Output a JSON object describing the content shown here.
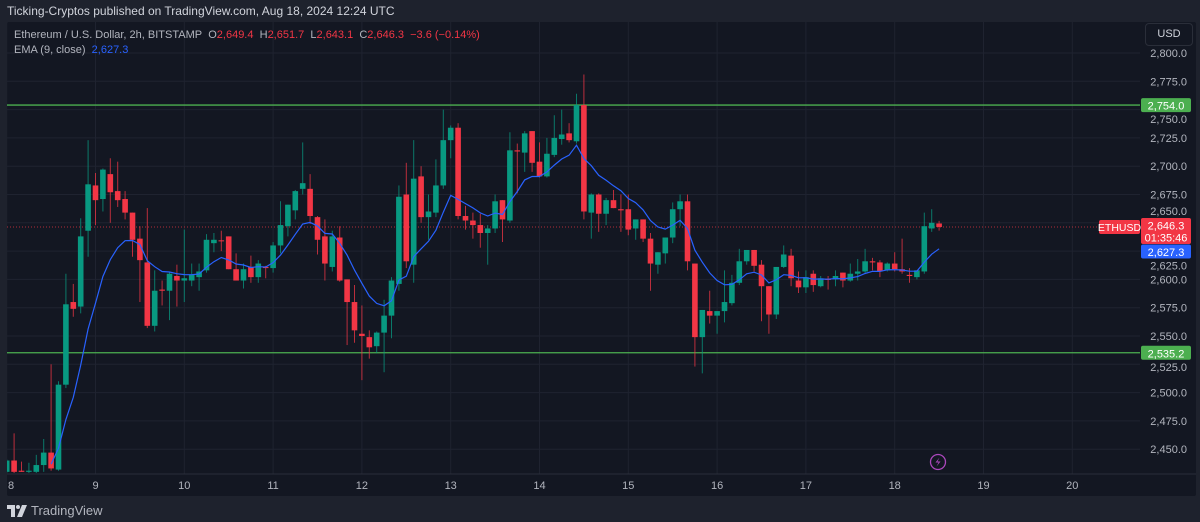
{
  "header": {
    "published": "Ticking-Cryptos published on TradingView.com, Aug 18, 2024 12:24 UTC"
  },
  "legend": {
    "symbol": "Ethereum / U.S. Dollar, 2h, BITSTAMP",
    "o_label": "O",
    "o": "2,649.4",
    "h_label": "H",
    "h": "2,651.7",
    "l_label": "L",
    "l": "2,643.1",
    "c_label": "C",
    "c": "2,646.3",
    "change": "−3.6 (−0.14%)",
    "ema_label": "EMA (9, close)",
    "ema_value": "2,627.3"
  },
  "currency_button": "USD",
  "footer": {
    "brand": "TradingView",
    "logo_icon": "tradingview-logo-icon"
  },
  "colors": {
    "up": "#089981",
    "down": "#f23645",
    "ema": "#2962ff",
    "level": "#4caf50",
    "event": "#ab47bc"
  },
  "chart_data": {
    "type": "candlestick",
    "symbol": "ETHUSD",
    "interval": "2h",
    "ylim": [
      2435,
      2812
    ],
    "y_ticks": [
      "2,800.0",
      "2,775.0",
      "2,750.0",
      "2,725.0",
      "2,700.0",
      "2,675.0",
      "2,650.0",
      "2,625.0",
      "2,600.0",
      "2,575.0",
      "2,550.0",
      "2,525.0",
      "2,500.0",
      "2,475.0",
      "2,450.0"
    ],
    "x_ticks": [
      "8",
      "9",
      "10",
      "11",
      "12",
      "13",
      "14",
      "15",
      "16",
      "17",
      "18",
      "19",
      "20"
    ],
    "grid": true,
    "candle_fields": [
      "time",
      "open",
      "high",
      "low",
      "close"
    ],
    "candles": [
      [
        "08 00:00",
        2430,
        2441,
        2429,
        2440
      ],
      [
        "08 02:00",
        2440,
        2464,
        2429,
        2430
      ],
      [
        "08 04:00",
        2431,
        2439,
        2430,
        2430
      ],
      [
        "08 06:00",
        2430,
        2438,
        2429,
        2431
      ],
      [
        "08 08:00",
        2430,
        2445,
        2429,
        2436
      ],
      [
        "08 10:00",
        2436,
        2459,
        2430,
        2447
      ],
      [
        "08 12:00",
        2447,
        2525,
        2431,
        2433
      ],
      [
        "08 14:00",
        2432,
        2510,
        2431,
        2507
      ],
      [
        "08 16:00",
        2507,
        2605,
        2504,
        2578
      ],
      [
        "08 18:00",
        2580,
        2596,
        2567,
        2574
      ],
      [
        "08 20:00",
        2576,
        2654,
        2570,
        2638
      ],
      [
        "08 22:00",
        2643,
        2723,
        2620,
        2684
      ],
      [
        "09 00:00",
        2683,
        2694,
        2648,
        2670
      ],
      [
        "09 02:00",
        2671,
        2698,
        2660,
        2697
      ],
      [
        "09 04:00",
        2693,
        2707,
        2650,
        2677
      ],
      [
        "09 06:00",
        2678,
        2704,
        2664,
        2670
      ],
      [
        "09 08:00",
        2671,
        2678,
        2653,
        2659
      ],
      [
        "09 10:00",
        2659,
        2659,
        2620,
        2635
      ],
      [
        "09 12:00",
        2636,
        2647,
        2580,
        2617
      ],
      [
        "09 14:00",
        2615,
        2663,
        2557,
        2559
      ],
      [
        "09 16:00",
        2559,
        2608,
        2554,
        2590
      ],
      [
        "09 18:00",
        2591,
        2599,
        2577,
        2590
      ],
      [
        "09 20:00",
        2590,
        2607,
        2564,
        2605
      ],
      [
        "09 22:00",
        2603,
        2613,
        2576,
        2599
      ],
      [
        "10 00:00",
        2599,
        2644,
        2580,
        2601
      ],
      [
        "10 02:00",
        2599,
        2614,
        2594,
        2604
      ],
      [
        "10 04:00",
        2602,
        2614,
        2590,
        2607
      ],
      [
        "10 06:00",
        2608,
        2640,
        2606,
        2635
      ],
      [
        "10 08:00",
        2632,
        2641,
        2624,
        2635
      ],
      [
        "10 10:00",
        2634.5,
        2643,
        2625,
        2634
      ],
      [
        "10 12:00",
        2638,
        2638,
        2609,
        2609
      ],
      [
        "10 14:00",
        2609,
        2623,
        2599,
        2599
      ],
      [
        "10 16:00",
        2599,
        2614,
        2592,
        2609
      ],
      [
        "10 18:00",
        2611,
        2621,
        2597,
        2602
      ],
      [
        "10 20:00",
        2602,
        2617,
        2597,
        2614
      ],
      [
        "10 22:00",
        2611,
        2612,
        2601,
        2610
      ],
      [
        "11 00:00",
        2610,
        2633,
        2606,
        2630
      ],
      [
        "11 02:00",
        2630,
        2669,
        2623,
        2648
      ],
      [
        "11 04:00",
        2647,
        2666,
        2638,
        2666
      ],
      [
        "11 06:00",
        2661,
        2679,
        2653,
        2678
      ],
      [
        "11 08:00",
        2680,
        2721,
        2675,
        2685
      ],
      [
        "11 10:00",
        2680,
        2693,
        2649,
        2656
      ],
      [
        "11 12:00",
        2655,
        2656,
        2622,
        2635
      ],
      [
        "11 14:00",
        2638,
        2653,
        2599,
        2614
      ],
      [
        "11 16:00",
        2611,
        2643,
        2607,
        2638
      ],
      [
        "11 18:00",
        2637,
        2647,
        2598,
        2599
      ],
      [
        "11 20:00",
        2600,
        2600,
        2542,
        2580
      ],
      [
        "11 22:00",
        2580,
        2595,
        2544,
        2555
      ],
      [
        "12 00:00",
        2552,
        2577,
        2511,
        2550
      ],
      [
        "12 02:00",
        2549,
        2555,
        2530,
        2540
      ],
      [
        "12 04:00",
        2541,
        2554,
        2535,
        2553
      ],
      [
        "12 06:00",
        2553,
        2582,
        2518,
        2568
      ],
      [
        "12 08:00",
        2568,
        2602,
        2548,
        2599
      ],
      [
        "12 10:00",
        2596,
        2683,
        2590,
        2673
      ],
      [
        "12 12:00",
        2675,
        2703,
        2610,
        2616
      ],
      [
        "12 14:00",
        2613,
        2723,
        2597,
        2689
      ],
      [
        "12 16:00",
        2691,
        2700,
        2650,
        2655
      ],
      [
        "12 18:00",
        2655,
        2675,
        2635,
        2660
      ],
      [
        "12 20:00",
        2659,
        2706,
        2655,
        2683
      ],
      [
        "12 22:00",
        2683,
        2750,
        2680,
        2723
      ],
      [
        "13 00:00",
        2723,
        2736,
        2707,
        2734
      ],
      [
        "13 02:00",
        2734,
        2738,
        2653,
        2656
      ],
      [
        "13 04:00",
        2656,
        2665,
        2644,
        2652
      ],
      [
        "13 06:00",
        2652,
        2659,
        2636,
        2648
      ],
      [
        "13 08:00",
        2648,
        2658,
        2628,
        2641
      ],
      [
        "13 10:00",
        2641,
        2648,
        2613,
        2645
      ],
      [
        "13 12:00",
        2645,
        2675,
        2641,
        2669
      ],
      [
        "13 14:00",
        2670,
        2670,
        2633,
        2653
      ],
      [
        "13 16:00",
        2652,
        2730,
        2650,
        2714
      ],
      [
        "13 18:00",
        2714,
        2720,
        2676,
        2713
      ],
      [
        "13 20:00",
        2712,
        2731,
        2695,
        2729
      ],
      [
        "13 22:00",
        2731,
        2731,
        2695,
        2703
      ],
      [
        "14 00:00",
        2704,
        2721,
        2690,
        2691
      ],
      [
        "14 02:00",
        2691,
        2725,
        2690,
        2711
      ],
      [
        "14 04:00",
        2710,
        2745,
        2708,
        2725
      ],
      [
        "14 06:00",
        2724,
        2750,
        2719,
        2728
      ],
      [
        "14 08:00",
        2729,
        2738,
        2721,
        2723
      ],
      [
        "14 10:00",
        2722,
        2764,
        2720,
        2754
      ],
      [
        "14 12:00",
        2754,
        2781,
        2653,
        2660
      ],
      [
        "14 14:00",
        2659,
        2676,
        2636,
        2675
      ],
      [
        "14 16:00",
        2675,
        2676,
        2642,
        2658
      ],
      [
        "14 18:00",
        2658,
        2672,
        2648,
        2670
      ],
      [
        "14 20:00",
        2670,
        2679,
        2663,
        2663
      ],
      [
        "14 22:00",
        2662,
        2675,
        2642,
        2661
      ],
      [
        "15 00:00",
        2662,
        2675,
        2639,
        2644
      ],
      [
        "15 02:00",
        2645,
        2653,
        2635,
        2653
      ],
      [
        "15 04:00",
        2653,
        2653,
        2633,
        2636
      ],
      [
        "15 06:00",
        2636,
        2641,
        2590,
        2614
      ],
      [
        "15 08:00",
        2613,
        2624,
        2605,
        2624
      ],
      [
        "15 10:00",
        2623,
        2637,
        2614,
        2637
      ],
      [
        "15 12:00",
        2637,
        2668,
        2632,
        2662
      ],
      [
        "15 14:00",
        2662,
        2675,
        2647,
        2669
      ],
      [
        "15 16:00",
        2669,
        2675,
        2608,
        2616
      ],
      [
        "15 18:00",
        2614,
        2614,
        2523,
        2549
      ],
      [
        "15 20:00",
        2549,
        2573,
        2517,
        2573
      ],
      [
        "15 22:00",
        2572,
        2590,
        2561,
        2568
      ],
      [
        "16 00:00",
        2568,
        2572,
        2552,
        2572
      ],
      [
        "16 02:00",
        2572,
        2608,
        2562,
        2580
      ],
      [
        "16 04:00",
        2579,
        2604,
        2577,
        2597
      ],
      [
        "16 06:00",
        2597,
        2627,
        2595,
        2616
      ],
      [
        "16 08:00",
        2616,
        2626,
        2613,
        2626
      ],
      [
        "16 10:00",
        2626,
        2626,
        2607,
        2612
      ],
      [
        "16 12:00",
        2613,
        2617,
        2563,
        2594
      ],
      [
        "16 14:00",
        2594,
        2594,
        2552,
        2569
      ],
      [
        "16 16:00",
        2569,
        2611,
        2565,
        2611
      ],
      [
        "16 18:00",
        2611,
        2630,
        2610,
        2622
      ],
      [
        "16 20:00",
        2621,
        2627,
        2594,
        2601
      ],
      [
        "16 22:00",
        2599,
        2607,
        2588,
        2593
      ],
      [
        "17 00:00",
        2593,
        2608,
        2588,
        2602
      ],
      [
        "17 02:00",
        2605,
        2608,
        2589,
        2595
      ],
      [
        "17 04:00",
        2594,
        2603,
        2593,
        2601
      ],
      [
        "17 06:00",
        2600.5,
        2603,
        2591,
        2599.5
      ],
      [
        "17 08:00",
        2600,
        2608,
        2594,
        2603
      ],
      [
        "17 10:00",
        2606,
        2606,
        2593,
        2599
      ],
      [
        "17 12:00",
        2599,
        2614,
        2598,
        2605
      ],
      [
        "17 14:00",
        2605,
        2618,
        2599,
        2607
      ],
      [
        "17 16:00",
        2607,
        2627,
        2605,
        2616
      ],
      [
        "17 18:00",
        2616,
        2619,
        2608,
        2615
      ],
      [
        "17 20:00",
        2615,
        2617,
        2602,
        2607
      ],
      [
        "17 22:00",
        2608,
        2615,
        2607,
        2614
      ],
      [
        "18 00:00",
        2614,
        2624,
        2607,
        2609
      ],
      [
        "18 02:00",
        2609,
        2636,
        2605,
        2607
      ],
      [
        "18 04:00",
        2604,
        2610,
        2597,
        2603
      ],
      [
        "18 06:00",
        2602,
        2608,
        2600,
        2608
      ],
      [
        "18 08:00",
        2607,
        2659,
        2605,
        2647
      ],
      [
        "18 10:00",
        2645,
        2662,
        2642,
        2650
      ],
      [
        "18 12:00",
        2649.4,
        2651.7,
        2643.1,
        2646.3
      ]
    ],
    "ema": {
      "length": 9,
      "source": "close",
      "last": 2627.3
    },
    "horizontal_levels": [
      {
        "price": 2754.0,
        "label": "2,754.0"
      },
      {
        "price": 2535.2,
        "label": "2,535.2"
      }
    ],
    "last_price": {
      "price": 2646.3,
      "symbol_label": "ETHUSD",
      "label": "2,646.3",
      "countdown": "01:35:46"
    },
    "ema_badge": {
      "price": 2627.3,
      "label": "2,627.3"
    },
    "event_icon": "lightning-event-icon"
  }
}
